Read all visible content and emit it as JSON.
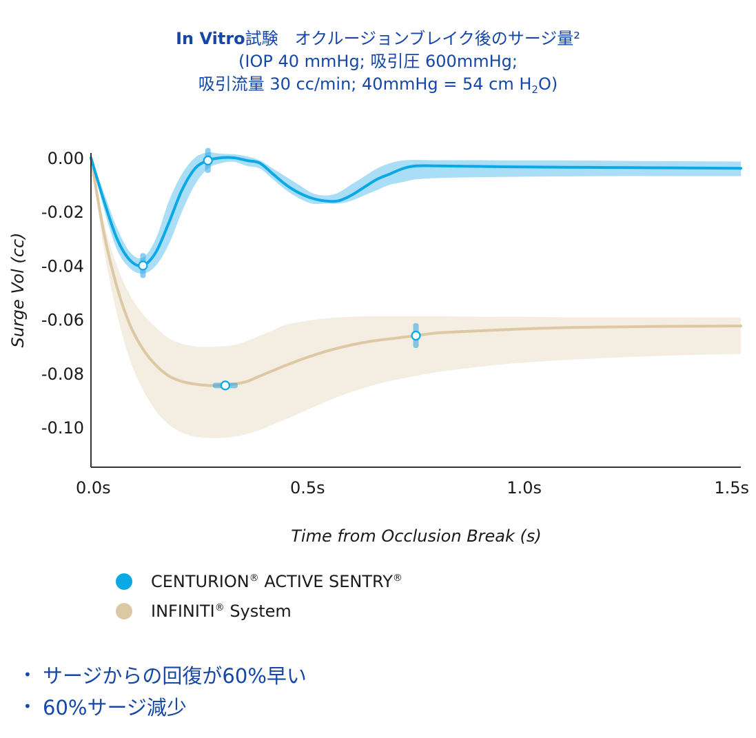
{
  "title": {
    "line1_bold": "In Vitro",
    "line1_rest": "試験　オクルージョンブレイク後のサージ量²",
    "line2": "(IOP 40 mmHg; 吸引圧 600mmHg;",
    "line3_a": "吸引流量 30 cc/min; 40mmHg = 54 cm H",
    "line3_sub": "2",
    "line3_b": "O)"
  },
  "colors": {
    "title": "#1447a8",
    "centurion_line": "#0ba8e6",
    "centurion_band": "#a9def6",
    "infiniti_line": "#dcc8a3",
    "infiniti_band": "#f4ede1",
    "axis": "#333333"
  },
  "chart_data": {
    "type": "line",
    "xlabel": "Time from Occlusion Break (s)",
    "ylabel": "Surge Vol (cc)",
    "xlim": [
      0,
      1.5
    ],
    "ylim": [
      -0.115,
      0.0
    ],
    "x_ticks": [
      {
        "value": 0.0,
        "label": "0.0s"
      },
      {
        "value": 0.5,
        "label": "0.5s"
      },
      {
        "value": 1.0,
        "label": "1.0s"
      },
      {
        "value": 1.5,
        "label": "1.5s"
      }
    ],
    "y_ticks": [
      {
        "value": 0.0,
        "label": "0.00"
      },
      {
        "value": -0.02,
        "label": "-0.02"
      },
      {
        "value": -0.04,
        "label": "-0.04"
      },
      {
        "value": -0.06,
        "label": "-0.06"
      },
      {
        "value": -0.08,
        "label": "-0.08"
      },
      {
        "value": -0.1,
        "label": "-0.10"
      }
    ],
    "grid": false,
    "legend_position": "bottom-left",
    "series": [
      {
        "name": "CENTURION® ACTIVE SENTRY®",
        "x": [
          0.0,
          0.03,
          0.06,
          0.09,
          0.12,
          0.15,
          0.18,
          0.21,
          0.24,
          0.27,
          0.3,
          0.33,
          0.36,
          0.39,
          0.42,
          0.45,
          0.48,
          0.51,
          0.54,
          0.57,
          0.6,
          0.63,
          0.66,
          0.69,
          0.72,
          0.75,
          0.8,
          0.9,
          1.0,
          1.1,
          1.2,
          1.3,
          1.4,
          1.5
        ],
        "values": [
          0.0,
          -0.016,
          -0.03,
          -0.038,
          -0.04,
          -0.035,
          -0.024,
          -0.012,
          -0.004,
          -0.001,
          0.0,
          0.0,
          -0.001,
          -0.002,
          -0.006,
          -0.01,
          -0.013,
          -0.015,
          -0.016,
          -0.016,
          -0.014,
          -0.011,
          -0.008,
          -0.006,
          -0.004,
          -0.003,
          -0.003,
          -0.0032,
          -0.0034,
          -0.0035,
          -0.0036,
          -0.0037,
          -0.0038,
          -0.0039
        ],
        "band_upper": [
          0.0,
          -0.013,
          -0.026,
          -0.035,
          -0.037,
          -0.03,
          -0.016,
          -0.006,
          0.0,
          0.002,
          0.0015,
          0.0013,
          0.0005,
          -0.001,
          -0.004,
          -0.007,
          -0.01,
          -0.013,
          -0.014,
          -0.013,
          -0.01,
          -0.007,
          -0.004,
          -0.002,
          -0.001,
          -0.0008,
          -0.0009,
          -0.0009,
          -0.001,
          -0.001,
          -0.0011,
          -0.0012,
          -0.0013,
          -0.0014
        ],
        "band_lower": [
          0.0,
          -0.019,
          -0.034,
          -0.041,
          -0.043,
          -0.04,
          -0.032,
          -0.02,
          -0.01,
          -0.004,
          -0.002,
          -0.0015,
          -0.003,
          -0.004,
          -0.008,
          -0.012,
          -0.015,
          -0.017,
          -0.017,
          -0.017,
          -0.016,
          -0.014,
          -0.012,
          -0.01,
          -0.009,
          -0.008,
          -0.0075,
          -0.0072,
          -0.007,
          -0.0069,
          -0.0068,
          -0.0068,
          -0.0068,
          -0.0068
        ],
        "markers": [
          {
            "x": 0.12,
            "y": -0.04
          },
          {
            "x": 0.27,
            "y": -0.001
          }
        ]
      },
      {
        "name": "INFINITI® System",
        "x": [
          0.0,
          0.03,
          0.06,
          0.09,
          0.12,
          0.15,
          0.18,
          0.21,
          0.24,
          0.27,
          0.3,
          0.33,
          0.36,
          0.39,
          0.42,
          0.45,
          0.5,
          0.55,
          0.6,
          0.65,
          0.7,
          0.75,
          0.8,
          0.9,
          1.0,
          1.1,
          1.2,
          1.3,
          1.4,
          1.5
        ],
        "values": [
          0.0,
          -0.028,
          -0.048,
          -0.062,
          -0.071,
          -0.077,
          -0.081,
          -0.083,
          -0.084,
          -0.0845,
          -0.0845,
          -0.084,
          -0.083,
          -0.081,
          -0.079,
          -0.077,
          -0.074,
          -0.0715,
          -0.0695,
          -0.068,
          -0.067,
          -0.066,
          -0.065,
          -0.0642,
          -0.0635,
          -0.063,
          -0.0628,
          -0.0626,
          -0.0625,
          -0.0624
        ],
        "band_upper": [
          0.0,
          -0.024,
          -0.04,
          -0.051,
          -0.058,
          -0.063,
          -0.067,
          -0.069,
          -0.07,
          -0.0702,
          -0.07,
          -0.0695,
          -0.068,
          -0.066,
          -0.064,
          -0.062,
          -0.0605,
          -0.0595,
          -0.059,
          -0.0588,
          -0.0588,
          -0.0588,
          -0.0588,
          -0.059,
          -0.059,
          -0.0592,
          -0.0592,
          -0.0592,
          -0.0592,
          -0.0592
        ],
        "band_lower": [
          0.0,
          -0.034,
          -0.058,
          -0.075,
          -0.086,
          -0.094,
          -0.099,
          -0.102,
          -0.1035,
          -0.104,
          -0.104,
          -0.1035,
          -0.1025,
          -0.101,
          -0.099,
          -0.097,
          -0.0935,
          -0.09,
          -0.087,
          -0.0845,
          -0.0825,
          -0.081,
          -0.0795,
          -0.0775,
          -0.076,
          -0.075,
          -0.0742,
          -0.0736,
          -0.0731,
          -0.0728
        ],
        "markers": [
          {
            "x": 0.31,
            "y": -0.0845
          },
          {
            "x": 0.75,
            "y": -0.066
          }
        ]
      }
    ]
  },
  "legend": [
    {
      "label": "CENTURION",
      "sup1": "®",
      "label2": " ACTIVE SENTRY",
      "sup2": "®",
      "color": "#0ba8e6"
    },
    {
      "label": "INFINITI",
      "sup1": "®",
      "label2": " System",
      "sup2": "",
      "color": "#dcc8a3"
    }
  ],
  "bullets": [
    "サージからの回復が60%早い",
    "60%サージ減少"
  ]
}
